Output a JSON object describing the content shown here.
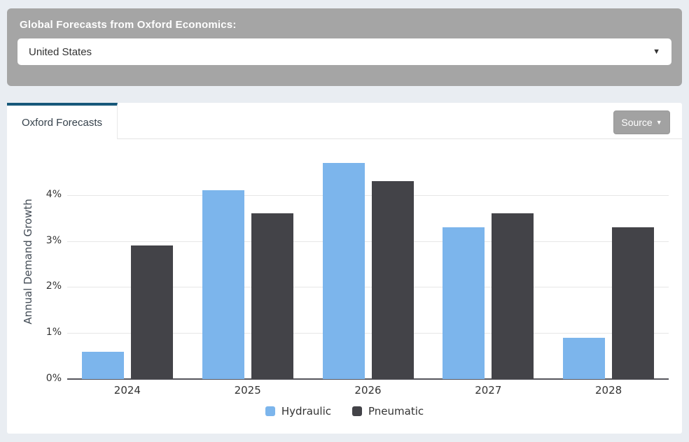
{
  "header": {
    "label": "Global Forecasts from Oxford Economics:",
    "select_value": "United States",
    "select_caret_icon": "▼"
  },
  "tabs": {
    "active_label": "Oxford Forecasts"
  },
  "source_button": {
    "label": "Source",
    "caret_icon": "▼"
  },
  "colors": {
    "page_background": "#e9edf2",
    "panel_gray": "#a5a5a5",
    "tab_accent_teal": "#17587a",
    "hydraulic_blue": "#7cb5ec",
    "pneumatic_dark": "#434348"
  },
  "chart_data": {
    "type": "bar",
    "title": "",
    "categories": [
      "2024",
      "2025",
      "2026",
      "2027",
      "2028"
    ],
    "series": [
      {
        "name": "Hydraulic",
        "color": "#7cb5ec",
        "values": [
          0.6,
          4.1,
          4.7,
          3.3,
          0.9
        ]
      },
      {
        "name": "Pneumatic",
        "color": "#434348",
        "values": [
          2.9,
          3.6,
          4.3,
          3.6,
          3.3
        ]
      }
    ],
    "xlabel": "",
    "ylabel": "Annual Demand Growth",
    "yticks": [
      0,
      1,
      2,
      3,
      4
    ],
    "ytick_suffix": "%",
    "ylim": [
      0,
      4.97
    ],
    "grid": true,
    "legend_position": "bottom"
  }
}
